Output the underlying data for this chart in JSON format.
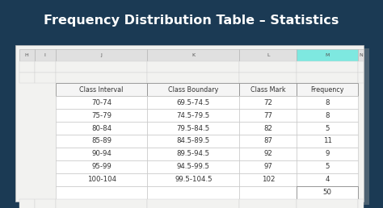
{
  "title": "Frequency Distribution Table – Statistics",
  "title_bg": "#1b3a54",
  "title_color": "#ffffff",
  "spreadsheet_bg": "#d8dde6",
  "sheet_bg": "#f5f5f5",
  "col_letters": [
    "H",
    "I",
    "J",
    "K",
    "L",
    "M",
    "N"
  ],
  "highlighted_col": "M",
  "highlighted_col_bg": "#7ee8e0",
  "col_header_bg": "#e0e0e0",
  "headers": [
    "Class Interval",
    "Class Boundary",
    "Class Mark",
    "Frequency"
  ],
  "rows": [
    [
      "70-74",
      "69.5-74.5",
      "72",
      "8"
    ],
    [
      "75-79",
      "74.5-79.5",
      "77",
      "8"
    ],
    [
      "80-84",
      "79.5-84.5",
      "82",
      "5"
    ],
    [
      "85-89",
      "84.5-89.5",
      "87",
      "11"
    ],
    [
      "90-94",
      "89.5-94.5",
      "92",
      "9"
    ],
    [
      "95-99",
      "94.5-99.5",
      "97",
      "5"
    ],
    [
      "100-104",
      "99.5-104.5",
      "102",
      "4"
    ]
  ],
  "total": "50",
  "font_color": "#333333",
  "title_fontsize": 11.5,
  "header_fontsize": 5.8,
  "cell_fontsize": 6.2
}
